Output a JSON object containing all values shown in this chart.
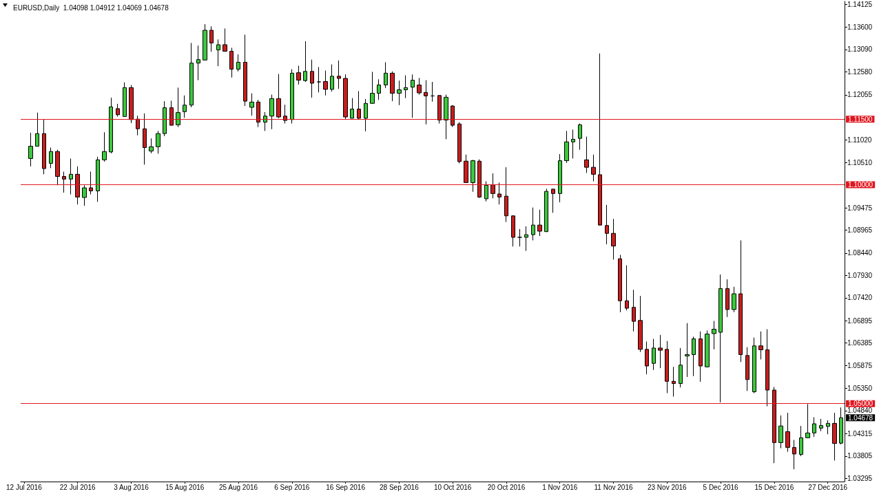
{
  "chart_data": {
    "type": "candlestick",
    "title": "EURUSD,Daily  1.04098 1.04912 1.04069 1.04678",
    "categories": [
      "12 Jul 2016",
      null,
      null,
      null,
      null,
      null,
      null,
      null,
      "22 Jul 2016",
      null,
      null,
      null,
      null,
      null,
      null,
      null,
      "3 Aug 2016",
      null,
      null,
      null,
      null,
      null,
      null,
      null,
      "15 Aug 2016",
      null,
      null,
      null,
      null,
      null,
      null,
      null,
      "25 Aug 2016",
      null,
      null,
      null,
      null,
      null,
      null,
      null,
      "6 Sep 2016",
      null,
      null,
      null,
      null,
      null,
      null,
      null,
      "16 Sep 2016",
      null,
      null,
      null,
      null,
      null,
      null,
      null,
      "28 Sep 2016",
      null,
      null,
      null,
      null,
      null,
      null,
      null,
      "10 Oct 2016",
      null,
      null,
      null,
      null,
      null,
      null,
      null,
      "20 Oct 2016",
      null,
      null,
      null,
      null,
      null,
      null,
      null,
      "1 Nov 2016",
      null,
      null,
      null,
      null,
      null,
      null,
      null,
      "11 Nov 2016",
      null,
      null,
      null,
      null,
      null,
      null,
      null,
      "23 Nov 2016",
      null,
      null,
      null,
      null,
      null,
      null,
      null,
      "5 Dec 2016",
      null,
      null,
      null,
      null,
      null,
      null,
      null,
      "15 Dec 2016",
      null,
      null,
      null,
      null,
      null,
      null,
      null,
      "27 Dec 2016",
      null,
      null
    ],
    "ohlc": [
      null,
      [
        1.106,
        1.1119,
        1.1042,
        1.1088
      ],
      [
        1.1088,
        1.1165,
        1.1088,
        1.1117
      ],
      [
        1.1117,
        1.1149,
        1.1024,
        1.1037
      ],
      [
        1.1049,
        1.1085,
        1.1038,
        1.1076
      ],
      [
        1.1076,
        1.108,
        1.0999,
        1.1019
      ],
      [
        1.1019,
        1.103,
        1.0982,
        1.1013
      ],
      [
        1.1013,
        1.106,
        1.0978,
        1.1024
      ],
      [
        1.1024,
        1.1042,
        1.0955,
        1.0972
      ],
      [
        1.0971,
        1.0999,
        1.0952,
        1.0993
      ],
      [
        1.0993,
        1.103,
        1.0978,
        1.0986
      ],
      [
        1.0986,
        1.1064,
        1.0961,
        1.1057
      ],
      [
        1.1057,
        1.112,
        1.1053,
        1.1076
      ],
      [
        1.1075,
        1.1199,
        1.1072,
        1.1178
      ],
      [
        1.1174,
        1.1185,
        1.1156,
        1.116
      ],
      [
        1.1156,
        1.1234,
        1.1156,
        1.1222
      ],
      [
        1.1222,
        1.1228,
        1.1141,
        1.1149
      ],
      [
        1.115,
        1.1158,
        1.1113,
        1.1128
      ],
      [
        1.1128,
        1.1163,
        1.1046,
        1.1085
      ],
      [
        1.1077,
        1.1106,
        1.1072,
        1.1087
      ],
      [
        1.1087,
        1.1123,
        1.1071,
        1.1117
      ],
      [
        1.1117,
        1.1191,
        1.1111,
        1.1176
      ],
      [
        1.1176,
        1.1192,
        1.1135,
        1.1136
      ],
      [
        1.1137,
        1.1222,
        1.1132,
        1.1165
      ],
      [
        1.1167,
        1.1204,
        1.1153,
        1.1182
      ],
      [
        1.1182,
        1.1324,
        1.1177,
        1.1278
      ],
      [
        1.1278,
        1.1318,
        1.1239,
        1.1286
      ],
      [
        1.1285,
        1.1367,
        1.1284,
        1.1353
      ],
      [
        1.1353,
        1.1362,
        1.1304,
        1.1324
      ],
      [
        1.1308,
        1.1332,
        1.1271,
        1.132
      ],
      [
        1.132,
        1.1357,
        1.1305,
        1.1305
      ],
      [
        1.1305,
        1.1313,
        1.1245,
        1.1264
      ],
      [
        1.1264,
        1.1298,
        1.1259,
        1.128
      ],
      [
        1.128,
        1.1343,
        1.118,
        1.1191
      ],
      [
        1.1177,
        1.1209,
        1.1158,
        1.1189
      ],
      [
        1.1189,
        1.1194,
        1.1132,
        1.1143
      ],
      [
        1.1143,
        1.1166,
        1.1123,
        1.1157
      ],
      [
        1.1157,
        1.1206,
        1.1127,
        1.1197
      ],
      [
        1.1197,
        1.1253,
        1.1152,
        1.1155
      ],
      [
        1.1157,
        1.1183,
        1.114,
        1.1147
      ],
      [
        1.1149,
        1.1264,
        1.114,
        1.1255
      ],
      [
        1.1256,
        1.1272,
        1.1229,
        1.1239
      ],
      [
        1.1238,
        1.1328,
        1.1235,
        1.1259
      ],
      [
        1.1259,
        1.1286,
        1.1199,
        1.1232
      ],
      [
        1.1235,
        1.1269,
        1.1211,
        1.1235
      ],
      [
        1.1236,
        1.1261,
        1.1204,
        1.1218
      ],
      [
        1.1218,
        1.1275,
        1.1213,
        1.1248
      ],
      [
        1.1248,
        1.1284,
        1.1219,
        1.1243
      ],
      [
        1.1243,
        1.1252,
        1.115,
        1.1155
      ],
      [
        1.1152,
        1.1198,
        1.1152,
        1.1173
      ],
      [
        1.1173,
        1.1214,
        1.115,
        1.1152
      ],
      [
        1.1152,
        1.1196,
        1.1122,
        1.1186
      ],
      [
        1.1186,
        1.1258,
        1.1185,
        1.1209
      ],
      [
        1.1209,
        1.1241,
        1.1194,
        1.1228
      ],
      [
        1.1228,
        1.128,
        1.1221,
        1.1255
      ],
      [
        1.1255,
        1.1259,
        1.1191,
        1.1209
      ],
      [
        1.1209,
        1.1238,
        1.1182,
        1.1217
      ],
      [
        1.1217,
        1.125,
        1.1198,
        1.1222
      ],
      [
        1.1223,
        1.1252,
        1.1153,
        1.1239
      ],
      [
        1.1228,
        1.1244,
        1.1206,
        1.121
      ],
      [
        1.1211,
        1.1239,
        1.1138,
        1.1203
      ],
      [
        1.1203,
        1.1235,
        1.119,
        1.1203
      ],
      [
        1.1204,
        1.1205,
        1.114,
        1.1148
      ],
      [
        1.1148,
        1.1206,
        1.1104,
        1.12
      ],
      [
        1.118,
        1.1182,
        1.1132,
        1.1136
      ],
      [
        1.1139,
        1.1143,
        1.1049,
        1.1053
      ],
      [
        1.1054,
        1.1069,
        1.1004,
        1.1005
      ],
      [
        1.1005,
        1.1057,
        1.0984,
        1.1055
      ],
      [
        1.1054,
        1.1058,
        1.097,
        1.0972
      ],
      [
        1.0968,
        1.1008,
        1.0962,
        1.0999
      ],
      [
        1.1,
        1.1026,
        1.0969,
        1.098
      ],
      [
        1.0979,
        1.1005,
        1.0955,
        1.0972
      ],
      [
        1.0974,
        1.104,
        1.0915,
        1.0929
      ],
      [
        1.0929,
        1.093,
        1.0859,
        1.088
      ],
      [
        1.088,
        1.0899,
        1.0859,
        1.088
      ],
      [
        1.088,
        1.0905,
        1.0849,
        1.0886
      ],
      [
        1.0886,
        1.0948,
        1.0873,
        1.0908
      ],
      [
        1.0908,
        1.0943,
        1.0883,
        1.0894
      ],
      [
        1.0893,
        1.0991,
        1.0892,
        1.0985
      ],
      [
        1.099,
        1.0991,
        1.0936,
        1.098
      ],
      [
        1.098,
        1.107,
        1.096,
        1.1055
      ],
      [
        1.1055,
        1.1123,
        1.105,
        1.1098
      ],
      [
        1.1098,
        1.1126,
        1.106,
        1.1104
      ],
      [
        1.1106,
        1.114,
        1.108,
        1.1137
      ],
      [
        1.1057,
        1.111,
        1.1027,
        1.104
      ],
      [
        1.104,
        1.1069,
        1.1008,
        1.1024
      ],
      [
        1.1023,
        1.13,
        1.0907,
        1.0908
      ],
      [
        1.0907,
        1.0954,
        1.0864,
        1.0889
      ],
      [
        1.0889,
        1.0922,
        1.0829,
        1.086
      ],
      [
        1.0831,
        1.084,
        1.0709,
        1.0735
      ],
      [
        1.0735,
        1.0816,
        1.0713,
        1.0718
      ],
      [
        1.072,
        1.076,
        1.0665,
        1.0688
      ],
      [
        1.069,
        1.0746,
        1.0618,
        1.0624
      ],
      [
        1.0624,
        1.0642,
        1.0567,
        1.0586
      ],
      [
        1.0592,
        1.0648,
        1.0577,
        1.0627
      ],
      [
        1.0627,
        1.0657,
        1.0581,
        1.0622
      ],
      [
        1.0624,
        1.0643,
        1.0524,
        1.0551
      ],
      [
        1.0551,
        1.0584,
        1.0516,
        1.0546
      ],
      [
        1.0546,
        1.0627,
        1.0537,
        1.0588
      ],
      [
        1.0609,
        1.0684,
        1.0561,
        1.0612
      ],
      [
        1.0612,
        1.0653,
        1.0563,
        1.0648
      ],
      [
        1.0648,
        1.0665,
        1.055,
        1.0586
      ],
      [
        1.0584,
        1.0667,
        1.0583,
        1.0659
      ],
      [
        1.066,
        1.0689,
        1.0624,
        1.067
      ],
      [
        1.0663,
        1.0795,
        1.0503,
        1.0763
      ],
      [
        1.0763,
        1.0784,
        1.0698,
        1.0715
      ],
      [
        1.0715,
        1.0767,
        1.0709,
        1.0751
      ],
      [
        1.0751,
        1.0873,
        1.0595,
        1.0612
      ],
      [
        1.061,
        1.0629,
        1.0529,
        1.0555
      ],
      [
        1.0527,
        1.0651,
        1.0524,
        1.0632
      ],
      [
        1.0632,
        1.0665,
        1.0601,
        1.0623
      ],
      [
        1.0623,
        1.067,
        1.0494,
        1.0531
      ],
      [
        1.0531,
        1.0538,
        1.0364,
        1.0411
      ],
      [
        1.0411,
        1.0473,
        1.0398,
        1.0449
      ],
      [
        1.0436,
        1.0479,
        1.039,
        1.04
      ],
      [
        1.04,
        1.0417,
        1.035,
        1.0385
      ],
      [
        1.0384,
        1.0449,
        1.038,
        1.0422
      ],
      [
        1.0422,
        1.0499,
        1.0422,
        1.0433
      ],
      [
        1.0433,
        1.0469,
        1.0424,
        1.0454
      ],
      [
        1.0444,
        1.0465,
        1.0437,
        1.045
      ],
      [
        1.0448,
        1.0462,
        1.043,
        1.0455
      ],
      [
        1.0455,
        1.0479,
        1.037,
        1.0409
      ],
      [
        1.04098,
        1.04912,
        1.04069,
        1.04678
      ]
    ],
    "colors": [
      null,
      "#3cc83c",
      "#3cc83c",
      "#c81e1e",
      "#3cc83c",
      "#c81e1e",
      "#c81e1e",
      "#3cc83c",
      "#c81e1e",
      "#3cc83c",
      "#c81e1e",
      "#3cc83c",
      "#3cc83c",
      "#3cc83c",
      "#c81e1e",
      "#3cc83c",
      "#c81e1e",
      "#c81e1e",
      "#c81e1e",
      "#3cc83c",
      "#3cc83c",
      "#3cc83c",
      "#c81e1e",
      "#3cc83c",
      "#3cc83c",
      "#3cc83c",
      "#3cc83c",
      "#3cc83c",
      "#c81e1e",
      "#3cc83c",
      "#c81e1e",
      "#c81e1e",
      "#3cc83c",
      "#c81e1e",
      "#3cc83c",
      "#c81e1e",
      "#3cc83c",
      "#3cc83c",
      "#c81e1e",
      "#c81e1e",
      "#3cc83c",
      "#c81e1e",
      "#3cc83c",
      "#c81e1e",
      "#000000",
      "#c81e1e",
      "#3cc83c",
      "#c81e1e",
      "#c81e1e",
      "#3cc83c",
      "#c81e1e",
      "#3cc83c",
      "#3cc83c",
      "#3cc83c",
      "#3cc83c",
      "#c81e1e",
      "#3cc83c",
      "#3cc83c",
      "#3cc83c",
      "#c81e1e",
      "#c81e1e",
      "#000000",
      "#c81e1e",
      "#3cc83c",
      "#c81e1e",
      "#c81e1e",
      "#c81e1e",
      "#3cc83c",
      "#c81e1e",
      "#3cc83c",
      "#c81e1e",
      "#c81e1e",
      "#c81e1e",
      "#c81e1e",
      "#000000",
      "#3cc83c",
      "#3cc83c",
      "#c81e1e",
      "#3cc83c",
      "#c81e1e",
      "#3cc83c",
      "#3cc83c",
      "#3cc83c",
      "#3cc83c",
      "#c81e1e",
      "#c81e1e",
      "#c81e1e",
      "#c81e1e",
      "#c81e1e",
      "#c81e1e",
      "#c81e1e",
      "#c81e1e",
      "#c81e1e",
      "#c81e1e",
      "#3cc83c",
      "#c81e1e",
      "#c81e1e",
      "#c81e1e",
      "#3cc83c",
      "#3cc83c",
      "#3cc83c",
      "#c81e1e",
      "#3cc83c",
      "#3cc83c",
      "#3cc83c",
      "#c81e1e",
      "#3cc83c",
      "#c81e1e",
      "#c81e1e",
      "#3cc83c",
      "#c81e1e",
      "#c81e1e",
      "#c81e1e",
      "#3cc83c",
      "#c81e1e",
      "#c81e1e",
      "#3cc83c",
      "#3cc83c",
      "#3cc83c",
      "#3cc83c",
      "#3cc83c",
      "#c81e1e",
      "#3cc83c"
    ],
    "ylim": [
      1.0322,
      1.1419
    ],
    "yticks": [
      1.14125,
      {
        "value": 1.136,
        "label": "1.13600"
      },
      {
        "value": 1.1309,
        "label": "1.13090"
      },
      {
        "value": 1.1258,
        "label": "1.12580"
      },
      1.12055,
      {
        "value": 1.1102,
        "label": "1.11020"
      },
      {
        "value": 1.1051,
        "label": "1.10510"
      },
      1.09475,
      1.08965,
      {
        "value": 1.0844,
        "label": "1.08440"
      },
      {
        "value": 1.0793,
        "label": "1.07930"
      },
      {
        "value": 1.0742,
        "label": "1.07420"
      },
      1.06895,
      1.06385,
      1.05875,
      {
        "value": 1.0535,
        "label": "1.05350"
      },
      {
        "value": 1.0484,
        "label": "1.04840"
      },
      1.04315,
      1.03805,
      1.03295
    ],
    "ref_lines": [
      {
        "axis": "y",
        "value": 1.115,
        "label": "1.11500",
        "color": "#e0141e"
      },
      {
        "axis": "y",
        "value": 1.1,
        "label": "1.10000",
        "color": "#e0141e"
      },
      {
        "axis": "y",
        "value": 1.05,
        "label": "1.05000",
        "color": "#e0141e"
      }
    ],
    "annotations": [
      "1.04678"
    ]
  }
}
